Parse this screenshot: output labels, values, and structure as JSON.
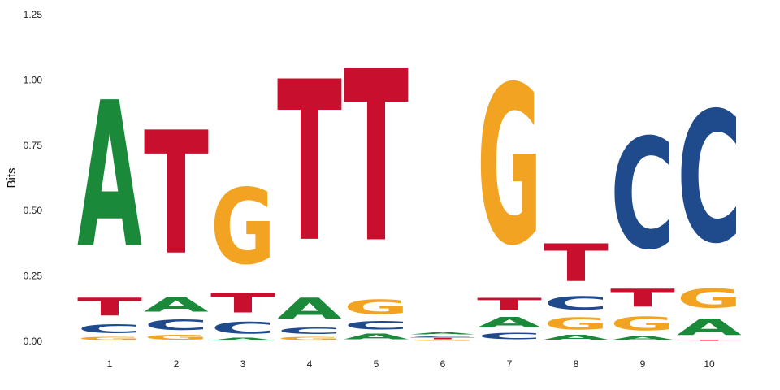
{
  "chart_data": {
    "type": "sequence-logo",
    "title": "",
    "xlabel": "",
    "ylabel": "Bits",
    "ylim": [
      0,
      1.25
    ],
    "yticks": [
      "0.00",
      "0.25",
      "0.50",
      "0.75",
      "1.00",
      "1.25"
    ],
    "positions": [
      "1",
      "2",
      "3",
      "4",
      "5",
      "6",
      "7",
      "8",
      "9",
      "10"
    ],
    "colors": {
      "A": "#1a8a3a",
      "C": "#1f4b8c",
      "G": "#f2a321",
      "T": "#c8102e"
    },
    "stacks": [
      [
        {
          "letter": "G",
          "bits": 0.02
        },
        {
          "letter": "C",
          "bits": 0.055
        },
        {
          "letter": "T",
          "bits": 0.11
        },
        {
          "letter": "A",
          "bits": 0.895
        }
      ],
      [
        {
          "letter": "G",
          "bits": 0.03
        },
        {
          "letter": "C",
          "bits": 0.065
        },
        {
          "letter": "A",
          "bits": 0.09
        },
        {
          "letter": "T",
          "bits": 0.755
        }
      ],
      [
        {
          "letter": "A",
          "bits": 0.015
        },
        {
          "letter": "C",
          "bits": 0.07
        },
        {
          "letter": "T",
          "bits": 0.12
        },
        {
          "letter": "G",
          "bits": 0.465
        }
      ],
      [
        {
          "letter": "G",
          "bits": 0.02
        },
        {
          "letter": "C",
          "bits": 0.04
        },
        {
          "letter": "A",
          "bits": 0.13
        },
        {
          "letter": "T",
          "bits": 0.985
        }
      ],
      [
        {
          "letter": "A",
          "bits": 0.035
        },
        {
          "letter": "C",
          "bits": 0.05
        },
        {
          "letter": "G",
          "bits": 0.09
        },
        {
          "letter": "T",
          "bits": 1.05
        }
      ],
      [
        {
          "letter": "G",
          "bits": 0.006
        },
        {
          "letter": "T",
          "bits": 0.008
        },
        {
          "letter": "C",
          "bits": 0.01
        },
        {
          "letter": "A",
          "bits": 0.012
        }
      ],
      [
        {
          "letter": "C",
          "bits": 0.04
        },
        {
          "letter": "A",
          "bits": 0.065
        },
        {
          "letter": "T",
          "bits": 0.075
        },
        {
          "letter": "G",
          "bits": 0.975
        }
      ],
      [
        {
          "letter": "A",
          "bits": 0.03
        },
        {
          "letter": "G",
          "bits": 0.075
        },
        {
          "letter": "C",
          "bits": 0.08
        },
        {
          "letter": "T",
          "bits": 0.23
        }
      ],
      [
        {
          "letter": "A",
          "bits": 0.025
        },
        {
          "letter": "G",
          "bits": 0.085
        },
        {
          "letter": "T",
          "bits": 0.11
        },
        {
          "letter": "C",
          "bits": 0.68
        }
      ],
      [
        {
          "letter": "T",
          "bits": 0.005
        },
        {
          "letter": "A",
          "bits": 0.1
        },
        {
          "letter": "G",
          "bits": 0.115
        },
        {
          "letter": "C",
          "bits": 0.805
        }
      ]
    ]
  }
}
